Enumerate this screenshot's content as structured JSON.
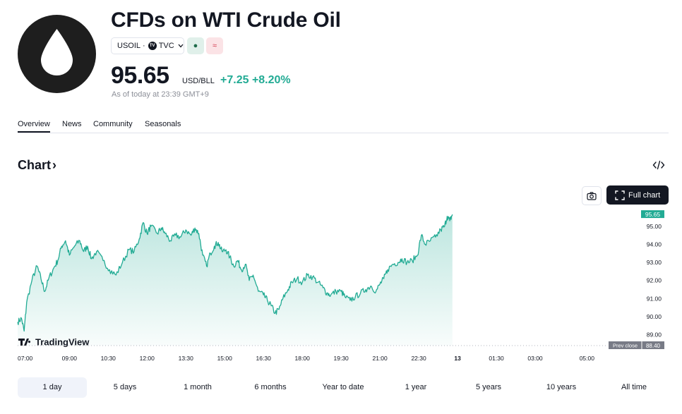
{
  "header": {
    "logo_icon": "oil-drop-icon",
    "title": "CFDs on WTI Crude Oil",
    "symbol": "USOIL",
    "separator": "·",
    "exchange": "TVC",
    "exchange_badge": "TV",
    "status_market_open": "●",
    "status_wave": "≈"
  },
  "quote": {
    "price": "95.65",
    "currency": "USD/BLL",
    "change": "+7.25",
    "change_pct": "+8.20%",
    "as_of": "As of today at 23:39 GMT+9"
  },
  "tabs": [
    "Overview",
    "News",
    "Community",
    "Seasonals"
  ],
  "active_tab": "Overview",
  "chart_section": {
    "heading": "Chart",
    "heading_chevron": "›",
    "full_chart_label": "Full chart"
  },
  "chart_data": {
    "type": "area",
    "brand": "TradingView",
    "color_line": "#22ab94",
    "color_price_tag": "#22ab94",
    "x_ticks": [
      "07:00",
      "09:00",
      "10:30",
      "12:00",
      "13:30",
      "15:00",
      "16:30",
      "18:00",
      "19:30",
      "21:00",
      "22:30",
      "13",
      "01:30",
      "03:00",
      "05:00"
    ],
    "y_ticks": [
      "95.00",
      "94.00",
      "93.00",
      "92.00",
      "91.00",
      "90.00",
      "89.00"
    ],
    "ylim": [
      88.4,
      96.2
    ],
    "current_price_label": "95.65",
    "prev_close_label": "Prev close",
    "prev_close_value": "88.40",
    "x_range_hours": [
      7,
      30
    ],
    "series_anchors": [
      [
        7.0,
        89.7
      ],
      [
        7.15,
        89.9
      ],
      [
        7.25,
        89.2
      ],
      [
        7.35,
        90.8
      ],
      [
        7.55,
        92.0
      ],
      [
        7.75,
        92.8
      ],
      [
        7.9,
        92.1
      ],
      [
        8.05,
        91.4
      ],
      [
        8.2,
        92.1
      ],
      [
        8.4,
        92.7
      ],
      [
        8.55,
        93.1
      ],
      [
        8.7,
        93.9
      ],
      [
        8.85,
        94.2
      ],
      [
        9.0,
        93.4
      ],
      [
        9.2,
        93.9
      ],
      [
        9.4,
        94.2
      ],
      [
        9.55,
        93.6
      ],
      [
        9.7,
        93.9
      ],
      [
        9.85,
        93.2
      ],
      [
        10.05,
        93.6
      ],
      [
        10.3,
        93.1
      ],
      [
        10.55,
        92.6
      ],
      [
        10.8,
        92.3
      ],
      [
        11.05,
        93.0
      ],
      [
        11.3,
        93.7
      ],
      [
        11.5,
        93.6
      ],
      [
        11.7,
        94.3
      ],
      [
        11.85,
        95.2
      ],
      [
        12.0,
        94.6
      ],
      [
        12.15,
        95.0
      ],
      [
        12.4,
        94.6
      ],
      [
        12.55,
        94.9
      ],
      [
        12.7,
        94.6
      ],
      [
        12.9,
        94.2
      ],
      [
        13.1,
        94.5
      ],
      [
        13.3,
        94.4
      ],
      [
        13.5,
        94.8
      ],
      [
        13.7,
        94.5
      ],
      [
        13.85,
        94.9
      ],
      [
        14.0,
        94.6
      ],
      [
        14.15,
        93.4
      ],
      [
        14.3,
        92.8
      ],
      [
        14.45,
        93.5
      ],
      [
        14.6,
        93.9
      ],
      [
        14.75,
        94.1
      ],
      [
        14.9,
        93.6
      ],
      [
        15.05,
        93.7
      ],
      [
        15.2,
        93.3
      ],
      [
        15.35,
        92.8
      ],
      [
        15.5,
        93.1
      ],
      [
        15.65,
        92.6
      ],
      [
        15.8,
        92.9
      ],
      [
        15.95,
        92.0
      ],
      [
        16.1,
        92.3
      ],
      [
        16.3,
        91.4
      ],
      [
        16.5,
        91.2
      ],
      [
        16.65,
        90.9
      ],
      [
        16.8,
        90.6
      ],
      [
        16.95,
        90.2
      ],
      [
        17.1,
        90.4
      ],
      [
        17.25,
        91.0
      ],
      [
        17.45,
        91.5
      ],
      [
        17.6,
        91.9
      ],
      [
        17.8,
        92.1
      ],
      [
        18.0,
        91.9
      ],
      [
        18.2,
        92.3
      ],
      [
        18.4,
        92.2
      ],
      [
        18.6,
        91.9
      ],
      [
        18.8,
        91.6
      ],
      [
        18.95,
        91.3
      ],
      [
        19.1,
        91.2
      ],
      [
        19.3,
        91.4
      ],
      [
        19.5,
        91.4
      ],
      [
        19.65,
        91.1
      ],
      [
        19.85,
        90.9
      ],
      [
        20.05,
        91.1
      ],
      [
        20.25,
        91.3
      ],
      [
        20.45,
        91.5
      ],
      [
        20.65,
        91.7
      ],
      [
        20.85,
        91.4
      ],
      [
        21.0,
        91.8
      ],
      [
        21.15,
        92.1
      ],
      [
        21.3,
        92.6
      ],
      [
        21.5,
        92.9
      ],
      [
        21.7,
        93.0
      ],
      [
        21.85,
        93.2
      ],
      [
        22.05,
        93.0
      ],
      [
        22.25,
        93.1
      ],
      [
        22.45,
        93.4
      ],
      [
        22.6,
        94.5
      ],
      [
        22.75,
        94.0
      ],
      [
        22.95,
        94.2
      ],
      [
        23.15,
        94.4
      ],
      [
        23.35,
        94.8
      ],
      [
        23.5,
        95.0
      ],
      [
        23.6,
        95.55
      ],
      [
        23.7,
        95.3
      ],
      [
        23.8,
        95.65
      ]
    ]
  },
  "ranges": [
    "1 day",
    "5 days",
    "1 month",
    "6 months",
    "Year to date",
    "1 year",
    "5 years",
    "10 years",
    "All time"
  ],
  "active_range": "1 day"
}
